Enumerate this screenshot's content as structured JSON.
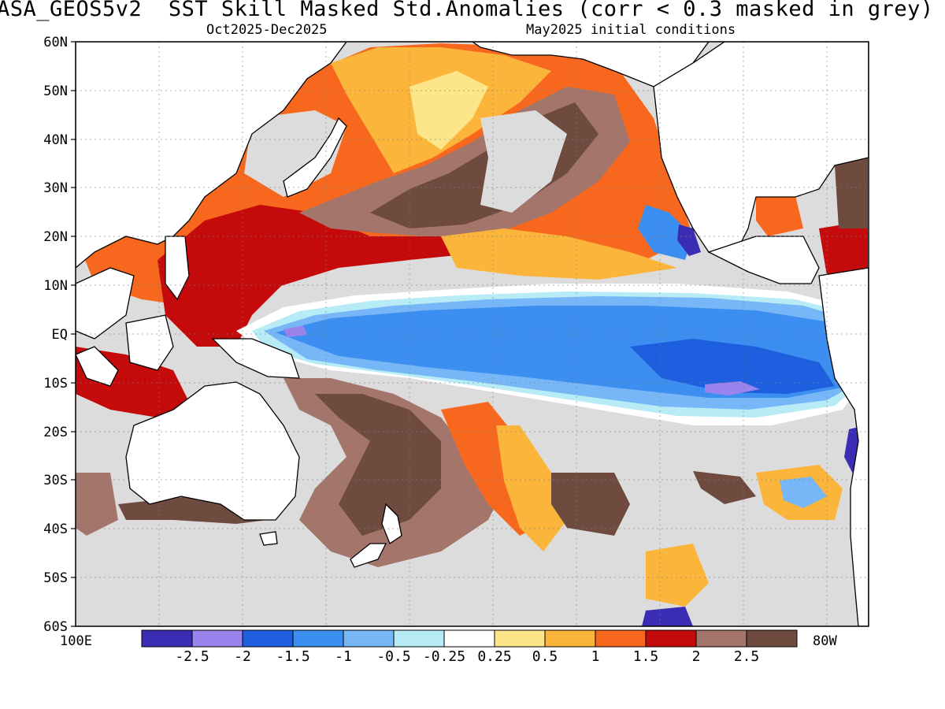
{
  "title": "ASA_GEOS5v2  SST Skill Masked Std.Anomalies (corr < 0.3 masked in grey)",
  "subtitle_left": "Oct2025-Dec2025",
  "subtitle_right": "May2025 initial conditions",
  "lat_labels": [
    "60N",
    "50N",
    "40N",
    "30N",
    "20N",
    "10N",
    "EQ",
    "10S",
    "20S",
    "30S",
    "40S",
    "50S",
    "60S"
  ],
  "lon_label_left": "100E",
  "lon_label_right": "80W",
  "colorbar": {
    "labels": [
      "-2.5",
      "-2",
      "-1.5",
      "-1",
      "-0.5",
      "-0.25",
      "0.25",
      "0.5",
      "1",
      "1.5",
      "2",
      "2.5"
    ],
    "colors": [
      "#3b2db3",
      "#9b83ee",
      "#1e5fe0",
      "#3c8ff0",
      "#78b7f7",
      "#b7ecf7",
      "#ffffff",
      "#fde68a",
      "#fbb53a",
      "#f7681e",
      "#c40a0a",
      "#a4766b",
      "#6e4a3f"
    ]
  },
  "colors": {
    "land": "#ffffff",
    "masked": "#dcdcdc",
    "coast": "#000000"
  }
}
